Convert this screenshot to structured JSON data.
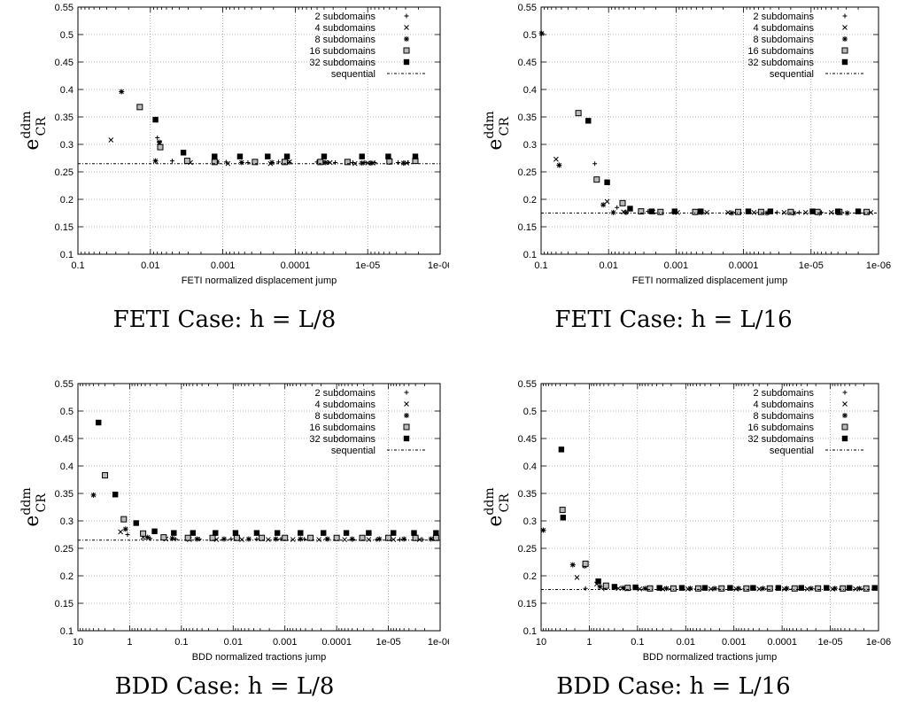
{
  "figure": {
    "panels": [
      {
        "caption": "FETI Case: h = L/8",
        "ylabel_main": "e",
        "ylabel_sup": "ddm",
        "ylabel_sub": "CR"
      },
      {
        "caption": "FETI Case: h = L/16",
        "ylabel_main": "e",
        "ylabel_sup": "ddm",
        "ylabel_sub": "CR"
      },
      {
        "caption": "BDD Case: h = L/8",
        "ylabel_main": "e",
        "ylabel_sup": "ddm",
        "ylabel_sub": "CR"
      },
      {
        "caption": "BDD Case: h = L/16",
        "ylabel_main": "e",
        "ylabel_sup": "ddm",
        "ylabel_sub": "CR"
      }
    ]
  },
  "chart_data": [
    {
      "type": "scatter",
      "title": "",
      "xlabel": "FETI normalized displacement jump",
      "ylabel": "e_CR^ddm",
      "x_scale": "log",
      "x_reversed": true,
      "xlim": [
        0.1,
        1e-06
      ],
      "ylim": [
        0.1,
        0.55
      ],
      "xticks": [
        0.1,
        0.01,
        0.001,
        0.0001,
        1e-05,
        1e-06
      ],
      "xtick_labels": [
        "0.1",
        "0.01",
        "0.001",
        "0.0001",
        "1e-05",
        "1e-06"
      ],
      "yticks": [
        0.1,
        0.15,
        0.2,
        0.25,
        0.3,
        0.35,
        0.4,
        0.45,
        0.5,
        0.55
      ],
      "ytick_labels": [
        "0.1",
        "0.15",
        "0.2",
        "0.25",
        "0.3",
        "0.35",
        "0.4",
        "0.45",
        "0.5",
        "0.55"
      ],
      "grid": true,
      "legend_position": "top-right",
      "series": [
        {
          "name": "2 subdomains",
          "marker": "plus",
          "x": [
            0.008,
            0.005,
            0.0009,
            0.00045,
            0.00017,
            0.00012,
            5e-05,
            4.2e-05,
            3.5e-05,
            2.8e-05,
            1.6e-05,
            1.1e-05,
            8e-06,
            5e-06,
            3.8e-06,
            2.8e-06
          ],
          "y": [
            0.312,
            0.27,
            0.268,
            0.267,
            0.268,
            0.267,
            0.268,
            0.267,
            0.267,
            0.267,
            0.267,
            0.267,
            0.267,
            0.267,
            0.267,
            0.267
          ]
        },
        {
          "name": "4 subdomains",
          "marker": "x",
          "x": [
            0.035,
            0.0075,
            0.0028,
            0.00085,
            0.00022,
            0.00012,
            4.2e-05,
            3.3e-05,
            1.5e-05,
            1e-05,
            8.5e-06,
            2.9e-06
          ],
          "y": [
            0.308,
            0.302,
            0.267,
            0.265,
            0.265,
            0.268,
            0.267,
            0.267,
            0.265,
            0.266,
            0.266,
            0.266
          ],
          "size": 1
        },
        {
          "name": "8 subdomains",
          "marker": "star",
          "x": [
            0.025,
            0.0075,
            0.0085,
            0.0012,
            0.00055,
            0.00021,
            3.8e-05,
            1.2e-05,
            9e-06,
            3.2e-06
          ],
          "y": [
            0.396,
            0.304,
            0.27,
            0.268,
            0.267,
            0.267,
            0.267,
            0.266,
            0.266,
            0.266
          ]
        },
        {
          "name": "16 subdomains",
          "marker": "square-open",
          "x": [
            0.014,
            0.0073,
            0.0031,
            0.0013,
            0.00036,
            0.00014,
            4.5e-05,
            1.9e-05,
            5e-06,
            2.2e-06
          ],
          "y": [
            0.368,
            0.295,
            0.27,
            0.268,
            0.268,
            0.268,
            0.268,
            0.268,
            0.269,
            0.27
          ]
        },
        {
          "name": "32 subdomains",
          "marker": "square-filled",
          "x": [
            0.0085,
            0.0035,
            0.0013,
            0.00058,
            0.00024,
            0.00013,
            4e-05,
            1.2e-05,
            5.2e-06,
            2.2e-06
          ],
          "y": [
            0.345,
            0.285,
            0.278,
            0.278,
            0.278,
            0.278,
            0.278,
            0.278,
            0.278,
            0.278
          ]
        },
        {
          "name": "sequential",
          "marker": "dotted-line",
          "value": 0.265
        }
      ]
    },
    {
      "type": "scatter",
      "title": "",
      "xlabel": "FETI normalized displacement jump",
      "ylabel": "e_CR^ddm",
      "x_scale": "log",
      "x_reversed": true,
      "xlim": [
        0.1,
        1e-06
      ],
      "ylim": [
        0.1,
        0.55
      ],
      "xticks": [
        0.1,
        0.01,
        0.001,
        0.0001,
        1e-05,
        1e-06
      ],
      "xtick_labels": [
        "0.1",
        "0.01",
        "0.001",
        "0.0001",
        "1e-05",
        "1e-06"
      ],
      "yticks": [
        0.1,
        0.15,
        0.2,
        0.25,
        0.3,
        0.35,
        0.4,
        0.45,
        0.5,
        0.55
      ],
      "ytick_labels": [
        "0.1",
        "0.15",
        "0.2",
        "0.25",
        "0.3",
        "0.35",
        "0.4",
        "0.45",
        "0.5",
        "0.55"
      ],
      "grid": true,
      "legend_position": "top-right",
      "series": [
        {
          "name": "2 subdomains",
          "marker": "plus",
          "x": [
            0.016,
            0.0075,
            0.0026,
            0.0011,
            0.00045,
            0.00013,
            6e-05,
            3.2e-05,
            1.5e-05,
            7e-06,
            3.5e-06,
            1.6e-06
          ],
          "y": [
            0.265,
            0.185,
            0.178,
            0.176,
            0.176,
            0.176,
            0.176,
            0.176,
            0.176,
            0.176,
            0.176,
            0.175
          ]
        },
        {
          "name": "4 subdomains",
          "marker": "x",
          "x": [
            0.06,
            0.0105,
            0.006,
            0.0022,
            0.00095,
            0.00035,
            0.00017,
            7e-05,
            2.5e-05,
            1.2e-05,
            5e-06,
            1.3e-06
          ],
          "y": [
            0.273,
            0.196,
            0.177,
            0.177,
            0.176,
            0.176,
            0.176,
            0.176,
            0.176,
            0.176,
            0.176,
            0.176
          ]
        },
        {
          "name": "8 subdomains",
          "marker": "star",
          "x": [
            0.098,
            0.054,
            0.012,
            0.0085,
            0.0055,
            0.0017,
            0.00042,
            0.00015,
            4.5e-05,
            1.8e-05,
            7.5e-06,
            2.9e-06
          ],
          "y": [
            0.502,
            0.262,
            0.19,
            0.176,
            0.176,
            0.176,
            0.176,
            0.175,
            0.175,
            0.175,
            0.175,
            0.175
          ]
        },
        {
          "name": "16 subdomains",
          "marker": "square-open",
          "x": [
            0.028,
            0.015,
            0.0062,
            0.0033,
            0.0017,
            0.00052,
            0.00012,
            5.5e-05,
            2e-05,
            8e-06,
            3.8e-06,
            1.5e-06
          ],
          "y": [
            0.357,
            0.236,
            0.193,
            0.178,
            0.177,
            0.177,
            0.177,
            0.177,
            0.177,
            0.177,
            0.177,
            0.177
          ]
        },
        {
          "name": "32 subdomains",
          "marker": "square-filled",
          "x": [
            0.02,
            0.0105,
            0.0048,
            0.0023,
            0.00105,
            0.00043,
            8.5e-05,
            4e-05,
            9.5e-06,
            4e-06,
            2e-06
          ],
          "y": [
            0.343,
            0.231,
            0.183,
            0.178,
            0.178,
            0.178,
            0.178,
            0.178,
            0.178,
            0.178,
            0.178
          ]
        },
        {
          "name": "sequential",
          "marker": "dotted-line",
          "value": 0.175
        }
      ]
    },
    {
      "type": "scatter",
      "title": "",
      "xlabel": "BDD normalized tractions jump",
      "ylabel": "e_CR^ddm",
      "x_scale": "log",
      "x_reversed": true,
      "xlim": [
        10,
        1e-06
      ],
      "ylim": [
        0.1,
        0.55
      ],
      "xticks": [
        10,
        1,
        0.1,
        0.01,
        0.001,
        0.0001,
        1e-05,
        1e-06
      ],
      "xtick_labels": [
        "10",
        "1",
        "0.1",
        "0.01",
        "0.001",
        "0.0001",
        "1e-05",
        "1e-06"
      ],
      "yticks": [
        0.1,
        0.15,
        0.2,
        0.25,
        0.3,
        0.35,
        0.4,
        0.45,
        0.5,
        0.55
      ],
      "ytick_labels": [
        "0.1",
        "0.15",
        "0.2",
        "0.25",
        "0.3",
        "0.35",
        "0.4",
        "0.45",
        "0.5",
        "0.55"
      ],
      "grid": true,
      "legend_position": "top-right",
      "series": [
        {
          "name": "2 subdomains",
          "marker": "plus",
          "x": [
            1.1,
            0.4,
            0.13,
            0.045,
            0.011,
            0.0035,
            0.0012,
            0.00042,
            0.00016,
            5e-05,
            1.7e-05,
            6e-06,
            2.2e-06
          ],
          "y": [
            0.275,
            0.268,
            0.267,
            0.267,
            0.267,
            0.267,
            0.267,
            0.267,
            0.267,
            0.266,
            0.266,
            0.266,
            0.266
          ]
        },
        {
          "name": "4 subdomains",
          "marker": "x",
          "x": [
            1.5,
            0.55,
            0.2,
            0.07,
            0.021,
            0.0068,
            0.0021,
            0.0007,
            0.00022,
            7e-05,
            2.4e-05,
            8e-06,
            2.5e-06
          ],
          "y": [
            0.28,
            0.27,
            0.267,
            0.266,
            0.266,
            0.266,
            0.266,
            0.266,
            0.266,
            0.266,
            0.266,
            0.266,
            0.266
          ]
        },
        {
          "name": "8 subdomains",
          "marker": "star",
          "x": [
            5,
            1.2,
            0.45,
            0.15,
            0.05,
            0.015,
            0.005,
            0.0015,
            0.0005,
            0.00015,
            5e-05,
            1.5e-05,
            5e-06,
            1.5e-06
          ],
          "y": [
            0.347,
            0.285,
            0.27,
            0.268,
            0.267,
            0.267,
            0.267,
            0.267,
            0.267,
            0.267,
            0.267,
            0.267,
            0.267,
            0.267
          ]
        },
        {
          "name": "16 subdomains",
          "marker": "square-open",
          "x": [
            3,
            1.3,
            0.55,
            0.22,
            0.075,
            0.025,
            0.0085,
            0.0028,
            0.001,
            0.00032,
            0.0001,
            3.2e-05,
            1e-05,
            3e-06,
            1.2e-06
          ],
          "y": [
            0.383,
            0.303,
            0.277,
            0.27,
            0.269,
            0.269,
            0.269,
            0.269,
            0.269,
            0.269,
            0.269,
            0.269,
            0.269,
            0.269,
            0.269
          ]
        },
        {
          "name": "32 subdomains",
          "marker": "square-filled",
          "x": [
            4,
            1.9,
            0.75,
            0.33,
            0.14,
            0.06,
            0.022,
            0.009,
            0.0035,
            0.0014,
            0.0005,
            0.00018,
            6.5e-05,
            2.4e-05,
            8e-06,
            3.2e-06,
            1.2e-06
          ],
          "y": [
            0.479,
            0.348,
            0.296,
            0.281,
            0.278,
            0.278,
            0.278,
            0.278,
            0.278,
            0.278,
            0.278,
            0.278,
            0.278,
            0.278,
            0.278,
            0.278,
            0.278
          ]
        },
        {
          "name": "sequential",
          "marker": "dotted-line",
          "value": 0.265
        }
      ]
    },
    {
      "type": "scatter",
      "title": "",
      "xlabel": "BDD normalized tractions jump",
      "ylabel": "e_CR^ddm",
      "x_scale": "log",
      "x_reversed": true,
      "xlim": [
        10,
        1e-06
      ],
      "ylim": [
        0.1,
        0.55
      ],
      "xticks": [
        10,
        1,
        0.1,
        0.01,
        0.001,
        0.0001,
        1e-05,
        1e-06
      ],
      "xtick_labels": [
        "10",
        "1",
        "0.1",
        "0.01",
        "0.001",
        "0.0001",
        "1e-05",
        "1e-06"
      ],
      "yticks": [
        0.1,
        0.15,
        0.2,
        0.25,
        0.3,
        0.35,
        0.4,
        0.45,
        0.5,
        0.55
      ],
      "ytick_labels": [
        "0.1",
        "0.15",
        "0.2",
        "0.25",
        "0.3",
        "0.35",
        "0.4",
        "0.45",
        "0.5",
        "0.55"
      ],
      "grid": true,
      "legend_position": "top-right",
      "series": [
        {
          "name": "2 subdomains",
          "marker": "plus",
          "x": [
            1.2,
            0.5,
            0.18,
            0.06,
            0.02,
            0.006,
            0.002,
            0.0006,
            0.0002,
            6e-05,
            2e-05,
            6e-06,
            2e-06
          ],
          "y": [
            0.177,
            0.176,
            0.176,
            0.176,
            0.176,
            0.176,
            0.176,
            0.176,
            0.176,
            0.176,
            0.176,
            0.176,
            0.176
          ]
        },
        {
          "name": "4 subdomains",
          "marker": "x",
          "x": [
            1.8,
            0.7,
            0.25,
            0.09,
            0.03,
            0.009,
            0.003,
            0.0009,
            0.0003,
            9e-05,
            3e-05,
            9e-06,
            3e-06
          ],
          "y": [
            0.197,
            0.185,
            0.177,
            0.176,
            0.176,
            0.176,
            0.176,
            0.176,
            0.176,
            0.176,
            0.176,
            0.176,
            0.176
          ]
        },
        {
          "name": "8 subdomains",
          "marker": "star",
          "x": [
            9,
            2.2,
            1.25,
            0.6,
            0.2,
            0.07,
            0.025,
            0.008,
            0.0025,
            0.0008,
            0.00025,
            8e-05,
            2.5e-05,
            8e-06,
            2.5e-06
          ],
          "y": [
            0.283,
            0.22,
            0.218,
            0.18,
            0.178,
            0.177,
            0.177,
            0.177,
            0.177,
            0.177,
            0.177,
            0.177,
            0.177,
            0.177,
            0.177
          ]
        },
        {
          "name": "16 subdomains",
          "marker": "square-open",
          "x": [
            3.6,
            1.2,
            0.45,
            0.16,
            0.055,
            0.018,
            0.0055,
            0.0018,
            0.00055,
            0.00018,
            5.5e-05,
            1.8e-05,
            5.5e-06,
            1.8e-06
          ],
          "y": [
            0.32,
            0.222,
            0.182,
            0.178,
            0.177,
            0.177,
            0.177,
            0.177,
            0.177,
            0.177,
            0.177,
            0.177,
            0.177,
            0.177
          ]
        },
        {
          "name": "32 subdomains",
          "marker": "square-filled",
          "x": [
            3.8,
            3.5,
            0.65,
            0.3,
            0.11,
            0.035,
            0.012,
            0.004,
            0.0012,
            0.0004,
            0.00012,
            4e-05,
            1.2e-05,
            4e-06,
            1.2e-06
          ],
          "y": [
            0.43,
            0.306,
            0.19,
            0.18,
            0.179,
            0.178,
            0.178,
            0.178,
            0.178,
            0.178,
            0.178,
            0.178,
            0.178,
            0.178,
            0.178
          ]
        },
        {
          "name": "sequential",
          "marker": "dotted-line",
          "value": 0.175
        }
      ]
    }
  ]
}
